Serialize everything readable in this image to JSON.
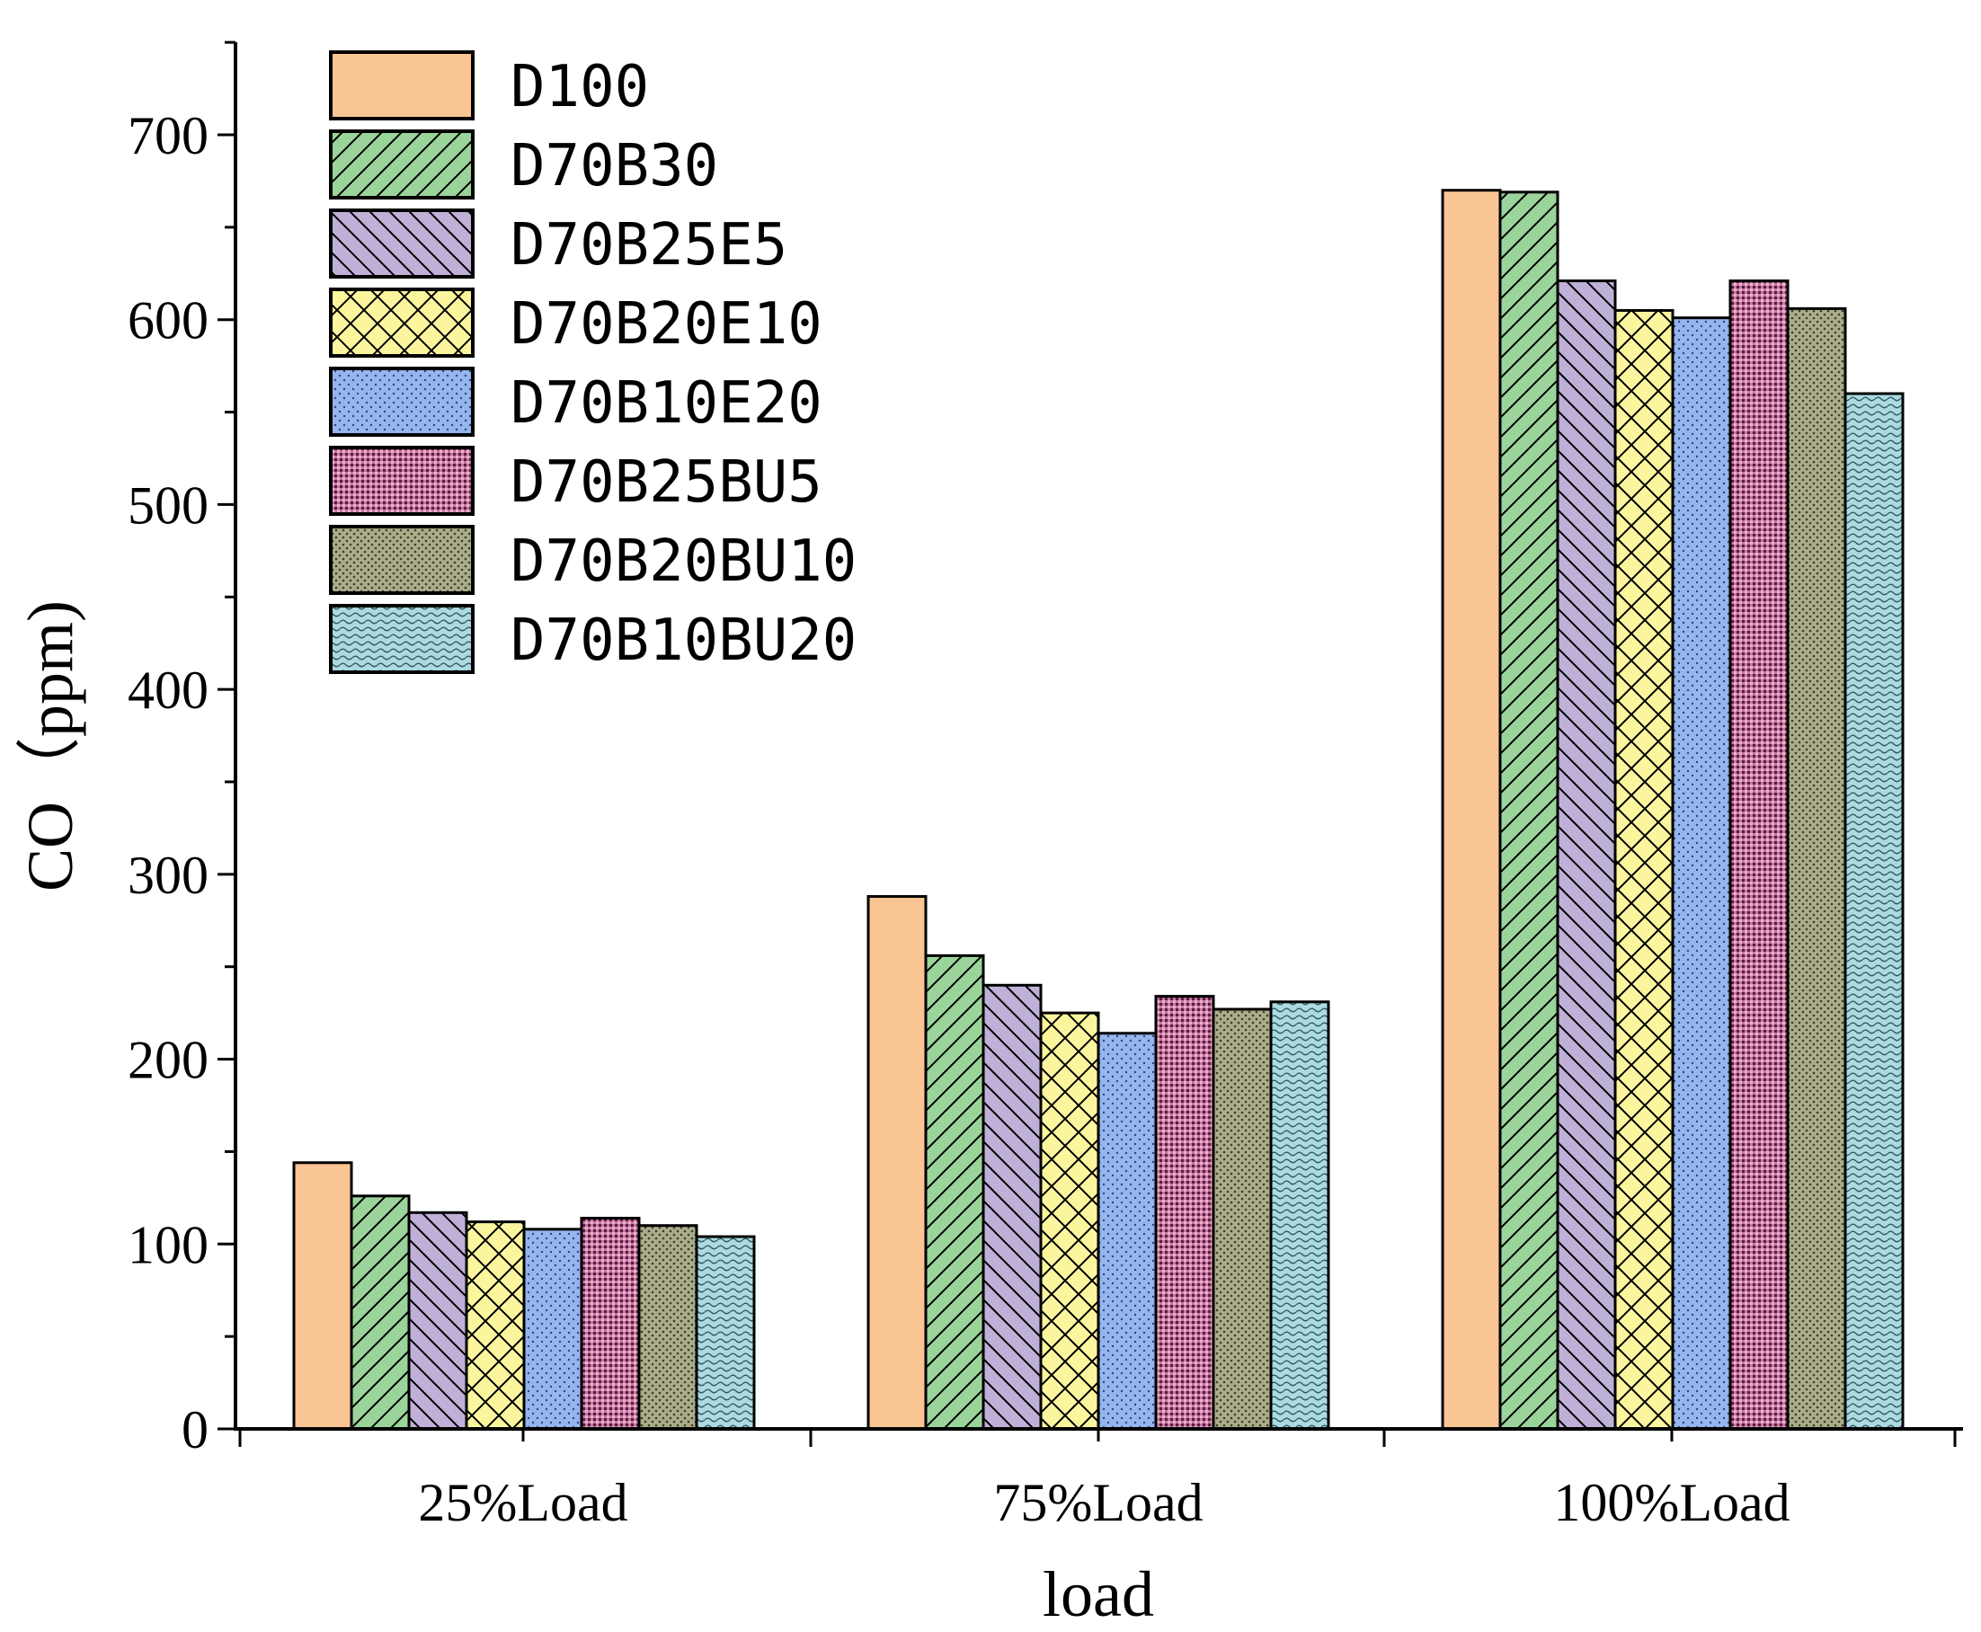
{
  "chart_data": {
    "type": "bar",
    "title": "",
    "xlabel": "load",
    "ylabel": "CO（ppm)",
    "ylim": [
      0,
      750
    ],
    "yticks": [
      0,
      100,
      200,
      300,
      400,
      500,
      600,
      700
    ],
    "ytick_labels": [
      "0",
      "100",
      "200",
      "300",
      "400",
      "500",
      "600",
      "700"
    ],
    "categories": [
      "25%Load",
      "75%Load",
      "100%Load"
    ],
    "legend_position": "top-left",
    "series": [
      {
        "name": "D100",
        "color": "#F9C593",
        "pattern": "solid",
        "values": [
          144,
          288,
          670
        ]
      },
      {
        "name": "D70B30",
        "color": "#9BD49A",
        "pattern": "forward-hatch",
        "values": [
          126,
          256,
          669
        ]
      },
      {
        "name": "D70B25E5",
        "color": "#BFB0D8",
        "pattern": "back-hatch",
        "values": [
          117,
          240,
          621
        ]
      },
      {
        "name": "D70B20E10",
        "color": "#FBF69E",
        "pattern": "cross-hatch",
        "values": [
          112,
          225,
          605
        ]
      },
      {
        "name": "D70B10E20",
        "color": "#96B5EE",
        "pattern": "dots",
        "values": [
          108,
          214,
          601
        ]
      },
      {
        "name": "D70B25BU5",
        "color": "#C7769E",
        "pattern": "dense-grid",
        "values": [
          114,
          234,
          621
        ]
      },
      {
        "name": "D70B20BU10",
        "color": "#ABAC8A",
        "pattern": "dense-dots",
        "values": [
          110,
          227,
          606
        ]
      },
      {
        "name": "D70B10BU20",
        "color": "#ACDAE0",
        "pattern": "waves",
        "values": [
          104,
          231,
          560
        ]
      }
    ]
  }
}
